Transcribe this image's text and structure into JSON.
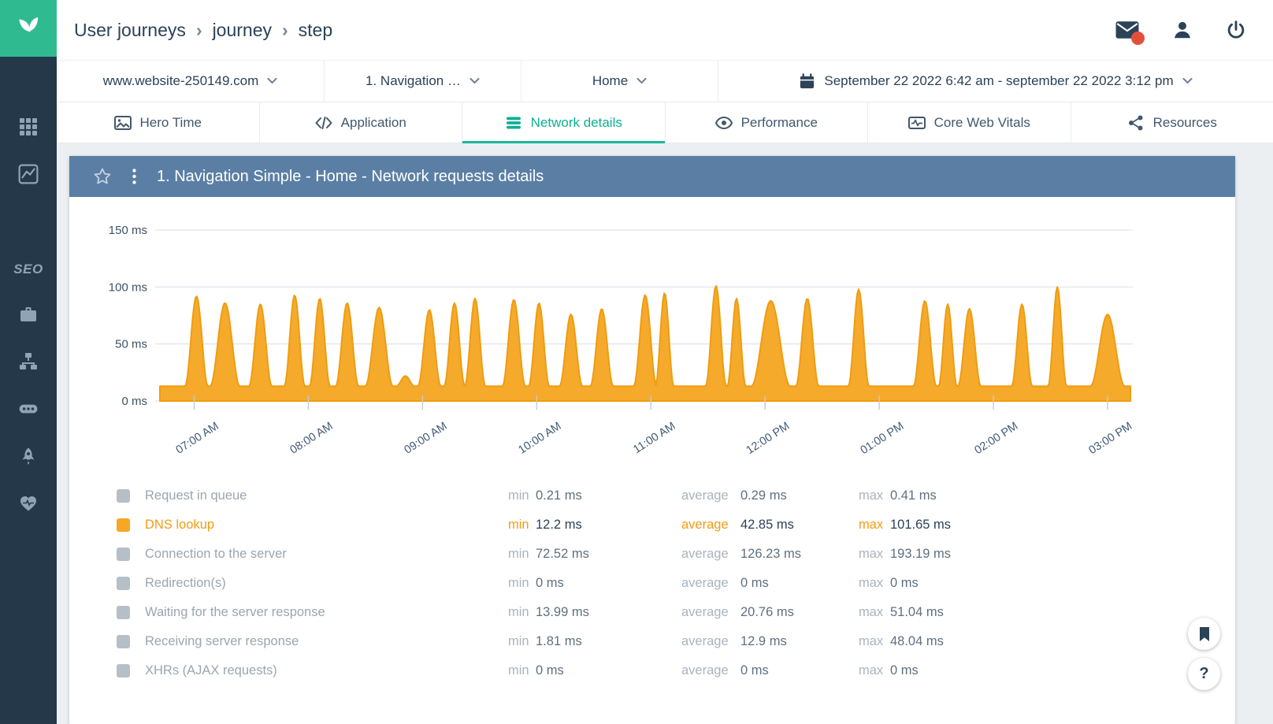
{
  "breadcrumb": {
    "items": [
      "User journeys",
      "journey",
      "step"
    ],
    "separator": "›"
  },
  "filters": {
    "website": "www.website-250149.com",
    "journey": "1. Navigation …",
    "step": "Home",
    "date_range": "September 22 2022 6:42 am - september 22 2022 3:12 pm"
  },
  "tabs": [
    {
      "label": "Hero Time",
      "active": false
    },
    {
      "label": "Application",
      "active": false
    },
    {
      "label": "Network details",
      "active": true
    },
    {
      "label": "Performance",
      "active": false
    },
    {
      "label": "Core Web Vitals",
      "active": false
    },
    {
      "label": "Resources",
      "active": false
    }
  ],
  "sidebar": {
    "seo_label": "SEO"
  },
  "panel": {
    "title": "1. Navigation Simple - Home - Network requests details"
  },
  "chart_data": {
    "type": "area",
    "title": "1. Navigation Simple - Home - Network requests details",
    "series_name": "DNS lookup",
    "unit": "ms",
    "ylim": [
      0,
      150
    ],
    "yticks": [
      0,
      50,
      100,
      150
    ],
    "ytick_labels": [
      "0 ms",
      "50 ms",
      "100 ms",
      "150 ms"
    ],
    "x_range": [
      6.7,
      15.2
    ],
    "xticks": [
      7,
      8,
      9,
      10,
      11,
      12,
      13,
      14,
      15
    ],
    "xtick_labels": [
      "07:00 AM",
      "08:00 AM",
      "09:00 AM",
      "10:00 AM",
      "11:00 AM",
      "12:00 PM",
      "01:00 PM",
      "02:00 PM",
      "03:00 PM"
    ],
    "baseline_ms": 13,
    "spikes": [
      [
        7.02,
        92,
        0.1
      ],
      [
        7.27,
        86,
        0.13
      ],
      [
        7.58,
        85,
        0.1
      ],
      [
        7.88,
        93,
        0.09
      ],
      [
        8.1,
        90,
        0.09
      ],
      [
        8.34,
        86,
        0.1
      ],
      [
        8.62,
        82,
        0.12
      ],
      [
        8.85,
        22,
        0.08
      ],
      [
        9.06,
        80,
        0.1
      ],
      [
        9.28,
        86,
        0.09
      ],
      [
        9.46,
        90,
        0.09
      ],
      [
        9.8,
        89,
        0.1
      ],
      [
        10.02,
        86,
        0.09
      ],
      [
        10.3,
        76,
        0.1
      ],
      [
        10.57,
        81,
        0.1
      ],
      [
        10.95,
        93,
        0.1
      ],
      [
        11.12,
        95,
        0.08
      ],
      [
        11.57,
        101,
        0.09
      ],
      [
        11.75,
        90,
        0.08
      ],
      [
        12.05,
        88,
        0.17
      ],
      [
        12.37,
        90,
        0.1
      ],
      [
        12.82,
        98,
        0.09
      ],
      [
        13.4,
        88,
        0.1
      ],
      [
        13.6,
        85,
        0.08
      ],
      [
        13.79,
        81,
        0.1
      ],
      [
        14.25,
        85,
        0.09
      ],
      [
        14.56,
        100,
        0.08
      ],
      [
        15.0,
        76,
        0.15
      ]
    ],
    "fill_color": "#f6a723",
    "stroke_color": "#ef9c0e",
    "grid": true,
    "legend_position": "bottom"
  },
  "legend": {
    "col_headers": [
      "min",
      "average",
      "max"
    ],
    "rows": [
      {
        "label": "Request in queue",
        "min": "0.21 ms",
        "average": "0.29 ms",
        "max": "0.41 ms",
        "active": false
      },
      {
        "label": "DNS lookup",
        "min": "12.2 ms",
        "average": "42.85 ms",
        "max": "101.65 ms",
        "active": true
      },
      {
        "label": "Connection to the server",
        "min": "72.52 ms",
        "average": "126.23 ms",
        "max": "193.19 ms",
        "active": false
      },
      {
        "label": "Redirection(s)",
        "min": "0 ms",
        "average": "0 ms",
        "max": "0 ms",
        "active": false
      },
      {
        "label": "Waiting for the server response",
        "min": "13.99 ms",
        "average": "20.76 ms",
        "max": "51.04 ms",
        "active": false
      },
      {
        "label": "Receiving server response",
        "min": "1.81 ms",
        "average": "12.9 ms",
        "max": "48.04 ms",
        "active": false
      },
      {
        "label": "XHRs (AJAX requests)",
        "min": "0 ms",
        "average": "0 ms",
        "max": "0 ms",
        "active": false
      }
    ]
  },
  "fab": {
    "help_label": "?"
  },
  "colors": {
    "sidebar_bg": "#24384a",
    "logo_green": "#2fbb8f",
    "accent_teal": "#0cb092",
    "chart_orange": "#f6a723",
    "panel_header_blue": "#5b7fa4",
    "notification_red": "#e2503c"
  }
}
